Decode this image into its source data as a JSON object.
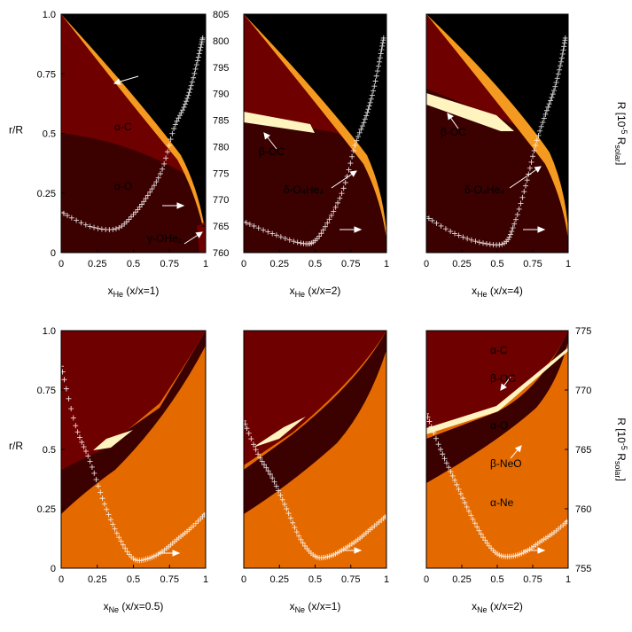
{
  "colors": {
    "black": "#000000",
    "dark_brown": "#3b0000",
    "maroon": "#6f0000",
    "orange": "#e46a00",
    "bright_orange": "#f59a20",
    "pale_yellow": "#fff4c0",
    "white": "#ffffff"
  },
  "chart_data": [
    {
      "type": "phase-diagram",
      "panel": "top-left",
      "xlabel": "x",
      "xlabel_sub": "He",
      "xlabel_cond": "(x_O/x_C=1)",
      "ylabel": "r/R",
      "y2label": "R [10^-5 R_solar]",
      "xticks": [
        "0",
        "0.25",
        "0.5",
        "0.75",
        "1"
      ],
      "yticks": [
        "0",
        "0.25",
        "0.5",
        "0.75",
        "1.0"
      ],
      "y2ticks": [
        "760",
        "765",
        "770",
        "775",
        "780",
        "785",
        "790",
        "795",
        "800",
        "805"
      ],
      "xlim": [
        0,
        1
      ],
      "ylim": [
        0,
        1
      ],
      "y2lim": [
        760,
        805
      ],
      "labels": [
        {
          "text": "α-He",
          "x": 0.45,
          "y": 0.9
        },
        {
          "text": "δ-C₄He₄",
          "x": 0.55,
          "y": 0.8
        },
        {
          "text": "ε-C₄He₂",
          "x": 0.55,
          "y": 0.74
        },
        {
          "text": "α-C",
          "x": 0.44,
          "y": 0.5
        },
        {
          "text": "α-O",
          "x": 0.43,
          "y": 0.25
        },
        {
          "text": "γ-OHe₂",
          "x": 0.72,
          "y": 0.05
        }
      ],
      "line": {
        "x": [
          0.0,
          0.2,
          0.38,
          0.5,
          0.6,
          0.7,
          0.78,
          0.85,
          0.9,
          0.95,
          0.98
        ],
        "y": [
          0.17,
          0.11,
          0.1,
          0.16,
          0.24,
          0.35,
          0.52,
          0.61,
          0.7,
          0.82,
          0.9
        ]
      }
    },
    {
      "type": "phase-diagram",
      "panel": "top-middle",
      "xlabel": "x",
      "xlabel_sub": "He",
      "xlabel_cond": "(x_O/x_C=2)",
      "xticks": [
        "0",
        "0.25",
        "0.5",
        "0.75",
        "1"
      ],
      "xlim": [
        0,
        1
      ],
      "ylim": [
        0,
        1
      ],
      "labels": [
        {
          "text": "β-OC",
          "x": 0.25,
          "y": 0.4
        },
        {
          "text": "δ-O₄He₄",
          "x": 0.51,
          "y": 0.23
        }
      ],
      "line": {
        "x": [
          0.0,
          0.2,
          0.4,
          0.5,
          0.6,
          0.7,
          0.78,
          0.85,
          0.9,
          0.95,
          0.98
        ],
        "y": [
          0.13,
          0.08,
          0.04,
          0.05,
          0.14,
          0.27,
          0.45,
          0.56,
          0.66,
          0.8,
          0.9
        ]
      }
    },
    {
      "type": "phase-diagram",
      "panel": "top-right",
      "xlabel": "x",
      "xlabel_sub": "He",
      "xlabel_cond": "(x_O/x_C=4)",
      "xticks": [
        "0",
        "0.25",
        "0.5",
        "0.75",
        "1"
      ],
      "xlim": [
        0,
        1
      ],
      "ylim": [
        0,
        1
      ],
      "labels": [
        {
          "text": "β-OC",
          "x": 0.25,
          "y": 0.5
        },
        {
          "text": "δ-O₄He₄",
          "x": 0.51,
          "y": 0.23
        }
      ],
      "line": {
        "x": [
          0.0,
          0.2,
          0.4,
          0.55,
          0.62,
          0.7,
          0.77,
          0.84,
          0.9,
          0.95,
          0.98
        ],
        "y": [
          0.15,
          0.08,
          0.04,
          0.04,
          0.12,
          0.28,
          0.45,
          0.58,
          0.68,
          0.8,
          0.9
        ]
      }
    },
    {
      "type": "phase-diagram",
      "panel": "bottom-left",
      "xlabel": "x",
      "xlabel_sub": "Ne",
      "xlabel_cond": "(x_O/x_C=0.5)",
      "ylabel": "r/R",
      "xticks": [
        "0",
        "0.25",
        "0.5",
        "0.75",
        "1"
      ],
      "yticks": [
        "0",
        "0.25",
        "0.5",
        "0.75",
        "1.0"
      ],
      "xlim": [
        0,
        1
      ],
      "ylim": [
        0,
        1
      ],
      "labels": [],
      "line": {
        "x": [
          0.0,
          0.1,
          0.2,
          0.3,
          0.4,
          0.5,
          0.6,
          0.7,
          0.8,
          0.9,
          1.0
        ],
        "y": [
          0.85,
          0.6,
          0.45,
          0.27,
          0.13,
          0.04,
          0.04,
          0.07,
          0.12,
          0.17,
          0.23
        ]
      }
    },
    {
      "type": "phase-diagram",
      "panel": "bottom-middle",
      "xlabel": "x",
      "xlabel_sub": "Ne",
      "xlabel_cond": "(x_O/x_C=1)",
      "xticks": [
        "0",
        "0.25",
        "0.5",
        "0.75",
        "1"
      ],
      "xlim": [
        0,
        1
      ],
      "ylim": [
        0,
        1
      ],
      "labels": [],
      "line": {
        "x": [
          0.0,
          0.1,
          0.2,
          0.3,
          0.4,
          0.5,
          0.6,
          0.7,
          0.8,
          0.9,
          1.0
        ],
        "y": [
          0.62,
          0.48,
          0.38,
          0.25,
          0.12,
          0.05,
          0.05,
          0.08,
          0.12,
          0.17,
          0.22
        ]
      }
    },
    {
      "type": "phase-diagram",
      "panel": "bottom-right",
      "xlabel": "x",
      "xlabel_sub": "Ne",
      "xlabel_cond": "(x_O/x_C=2)",
      "y2label": "R [10^-5 R_solar]",
      "xticks": [
        "0",
        "0.25",
        "0.5",
        "0.75",
        "1"
      ],
      "y2ticks": [
        "755",
        "760",
        "765",
        "770",
        "775"
      ],
      "xlim": [
        0,
        1
      ],
      "ylim": [
        0,
        1
      ],
      "y2lim": [
        755,
        775
      ],
      "labels": [
        {
          "text": "α-C",
          "x": 0.5,
          "y": 0.9
        },
        {
          "text": "β-OC",
          "x": 0.55,
          "y": 0.75
        },
        {
          "text": "α-O",
          "x": 0.5,
          "y": 0.55
        },
        {
          "text": "β-NeO",
          "x": 0.58,
          "y": 0.39
        },
        {
          "text": "α-Ne",
          "x": 0.55,
          "y": 0.26
        }
      ],
      "line": {
        "x": [
          0.0,
          0.1,
          0.2,
          0.3,
          0.4,
          0.5,
          0.6,
          0.7,
          0.8,
          0.9,
          1.0
        ],
        "y": [
          0.65,
          0.5,
          0.37,
          0.24,
          0.13,
          0.06,
          0.05,
          0.07,
          0.11,
          0.15,
          0.2
        ]
      }
    }
  ]
}
